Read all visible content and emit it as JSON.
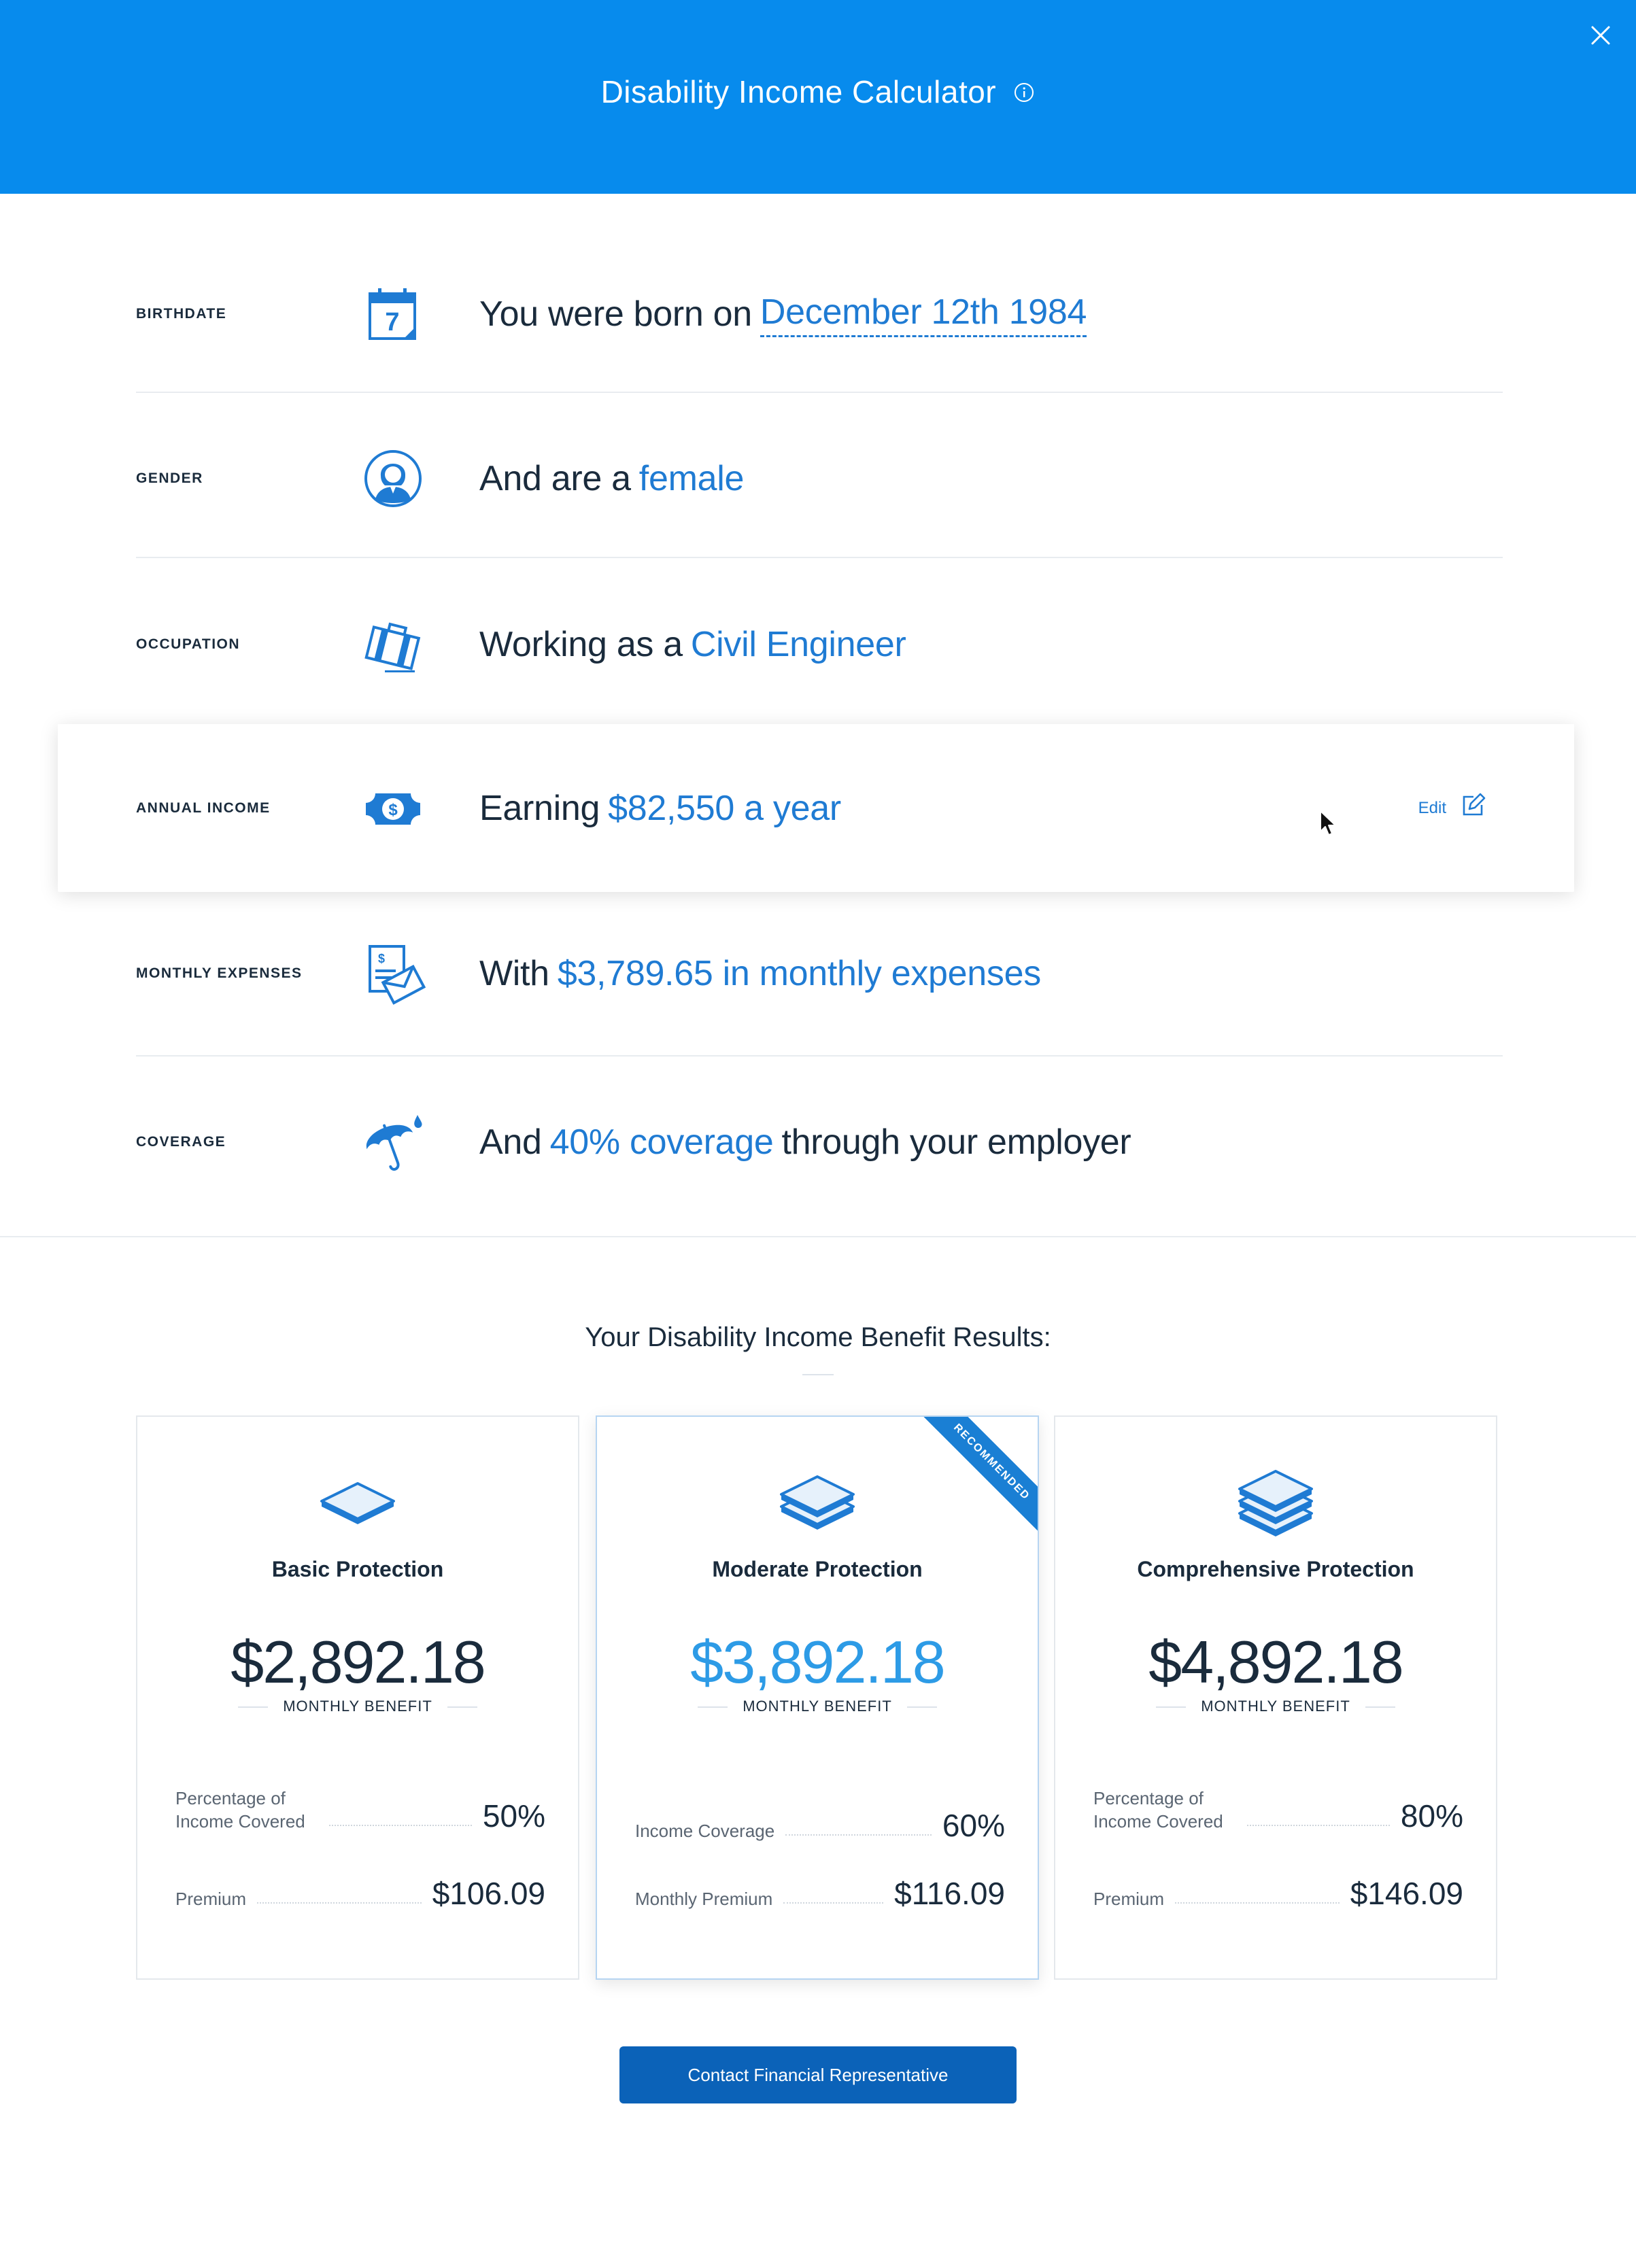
{
  "header": {
    "title": "Disability Income Calculator"
  },
  "rows": [
    {
      "label": "BIRTHDATE",
      "prefix": "You were born on",
      "highlight": "December 12th 1984",
      "suffix": "",
      "icon": "calendar-icon"
    },
    {
      "label": "GENDER",
      "prefix": "And are a",
      "highlight": "female",
      "suffix": "",
      "icon": "female-avatar-icon"
    },
    {
      "label": "OCCUPATION",
      "prefix": "Working as a",
      "highlight": "Civil Engineer",
      "suffix": "",
      "icon": "briefcase-icon"
    },
    {
      "label": "ANNUAL INCOME",
      "prefix": "Earning",
      "highlight": "$82,550 a year",
      "suffix": "",
      "icon": "dollar-bill-icon"
    },
    {
      "label": "MONTHLY EXPENSES",
      "prefix": "With",
      "highlight": "$3,789.65 in monthly expenses",
      "suffix": "",
      "icon": "bill-envelope-icon"
    },
    {
      "label": "COVERAGE",
      "prefix": "And",
      "highlight": "40% coverage",
      "suffix": "through your employer",
      "icon": "umbrella-icon"
    }
  ],
  "edit_label": "Edit",
  "results": {
    "title": "Your Disability Income Benefit Results:"
  },
  "plans": [
    {
      "name": "Basic Protection",
      "amount": "$2,892.18",
      "sub": "MONTHLY BENEFIT",
      "stat1_label": "Percentage of Income Covered",
      "stat1_value": "50%",
      "stat2_label": "Premium",
      "stat2_value": "$106.09",
      "icon": "single-layer-icon"
    },
    {
      "name": "Moderate Protection",
      "amount": "$3,892.18",
      "sub": "MONTHLY BENEFIT",
      "stat1_label": "Income Coverage",
      "stat1_value": "60%",
      "stat2_label": "Monthly Premium",
      "stat2_value": "$116.09",
      "ribbon": "RECOMMENDED",
      "icon": "double-layer-icon"
    },
    {
      "name": "Comprehensive Protection",
      "amount": "$4,892.18",
      "sub": "MONTHLY BENEFIT",
      "stat1_label": "Percentage of Income Covered",
      "stat1_value": "80%",
      "stat2_label": "Premium",
      "stat2_value": "$146.09",
      "icon": "triple-layer-icon"
    }
  ],
  "cta_label": "Contact Financial Representative",
  "colors": {
    "header": "#078bed",
    "accent": "#1f7bd3",
    "button": "#0b62b8"
  }
}
